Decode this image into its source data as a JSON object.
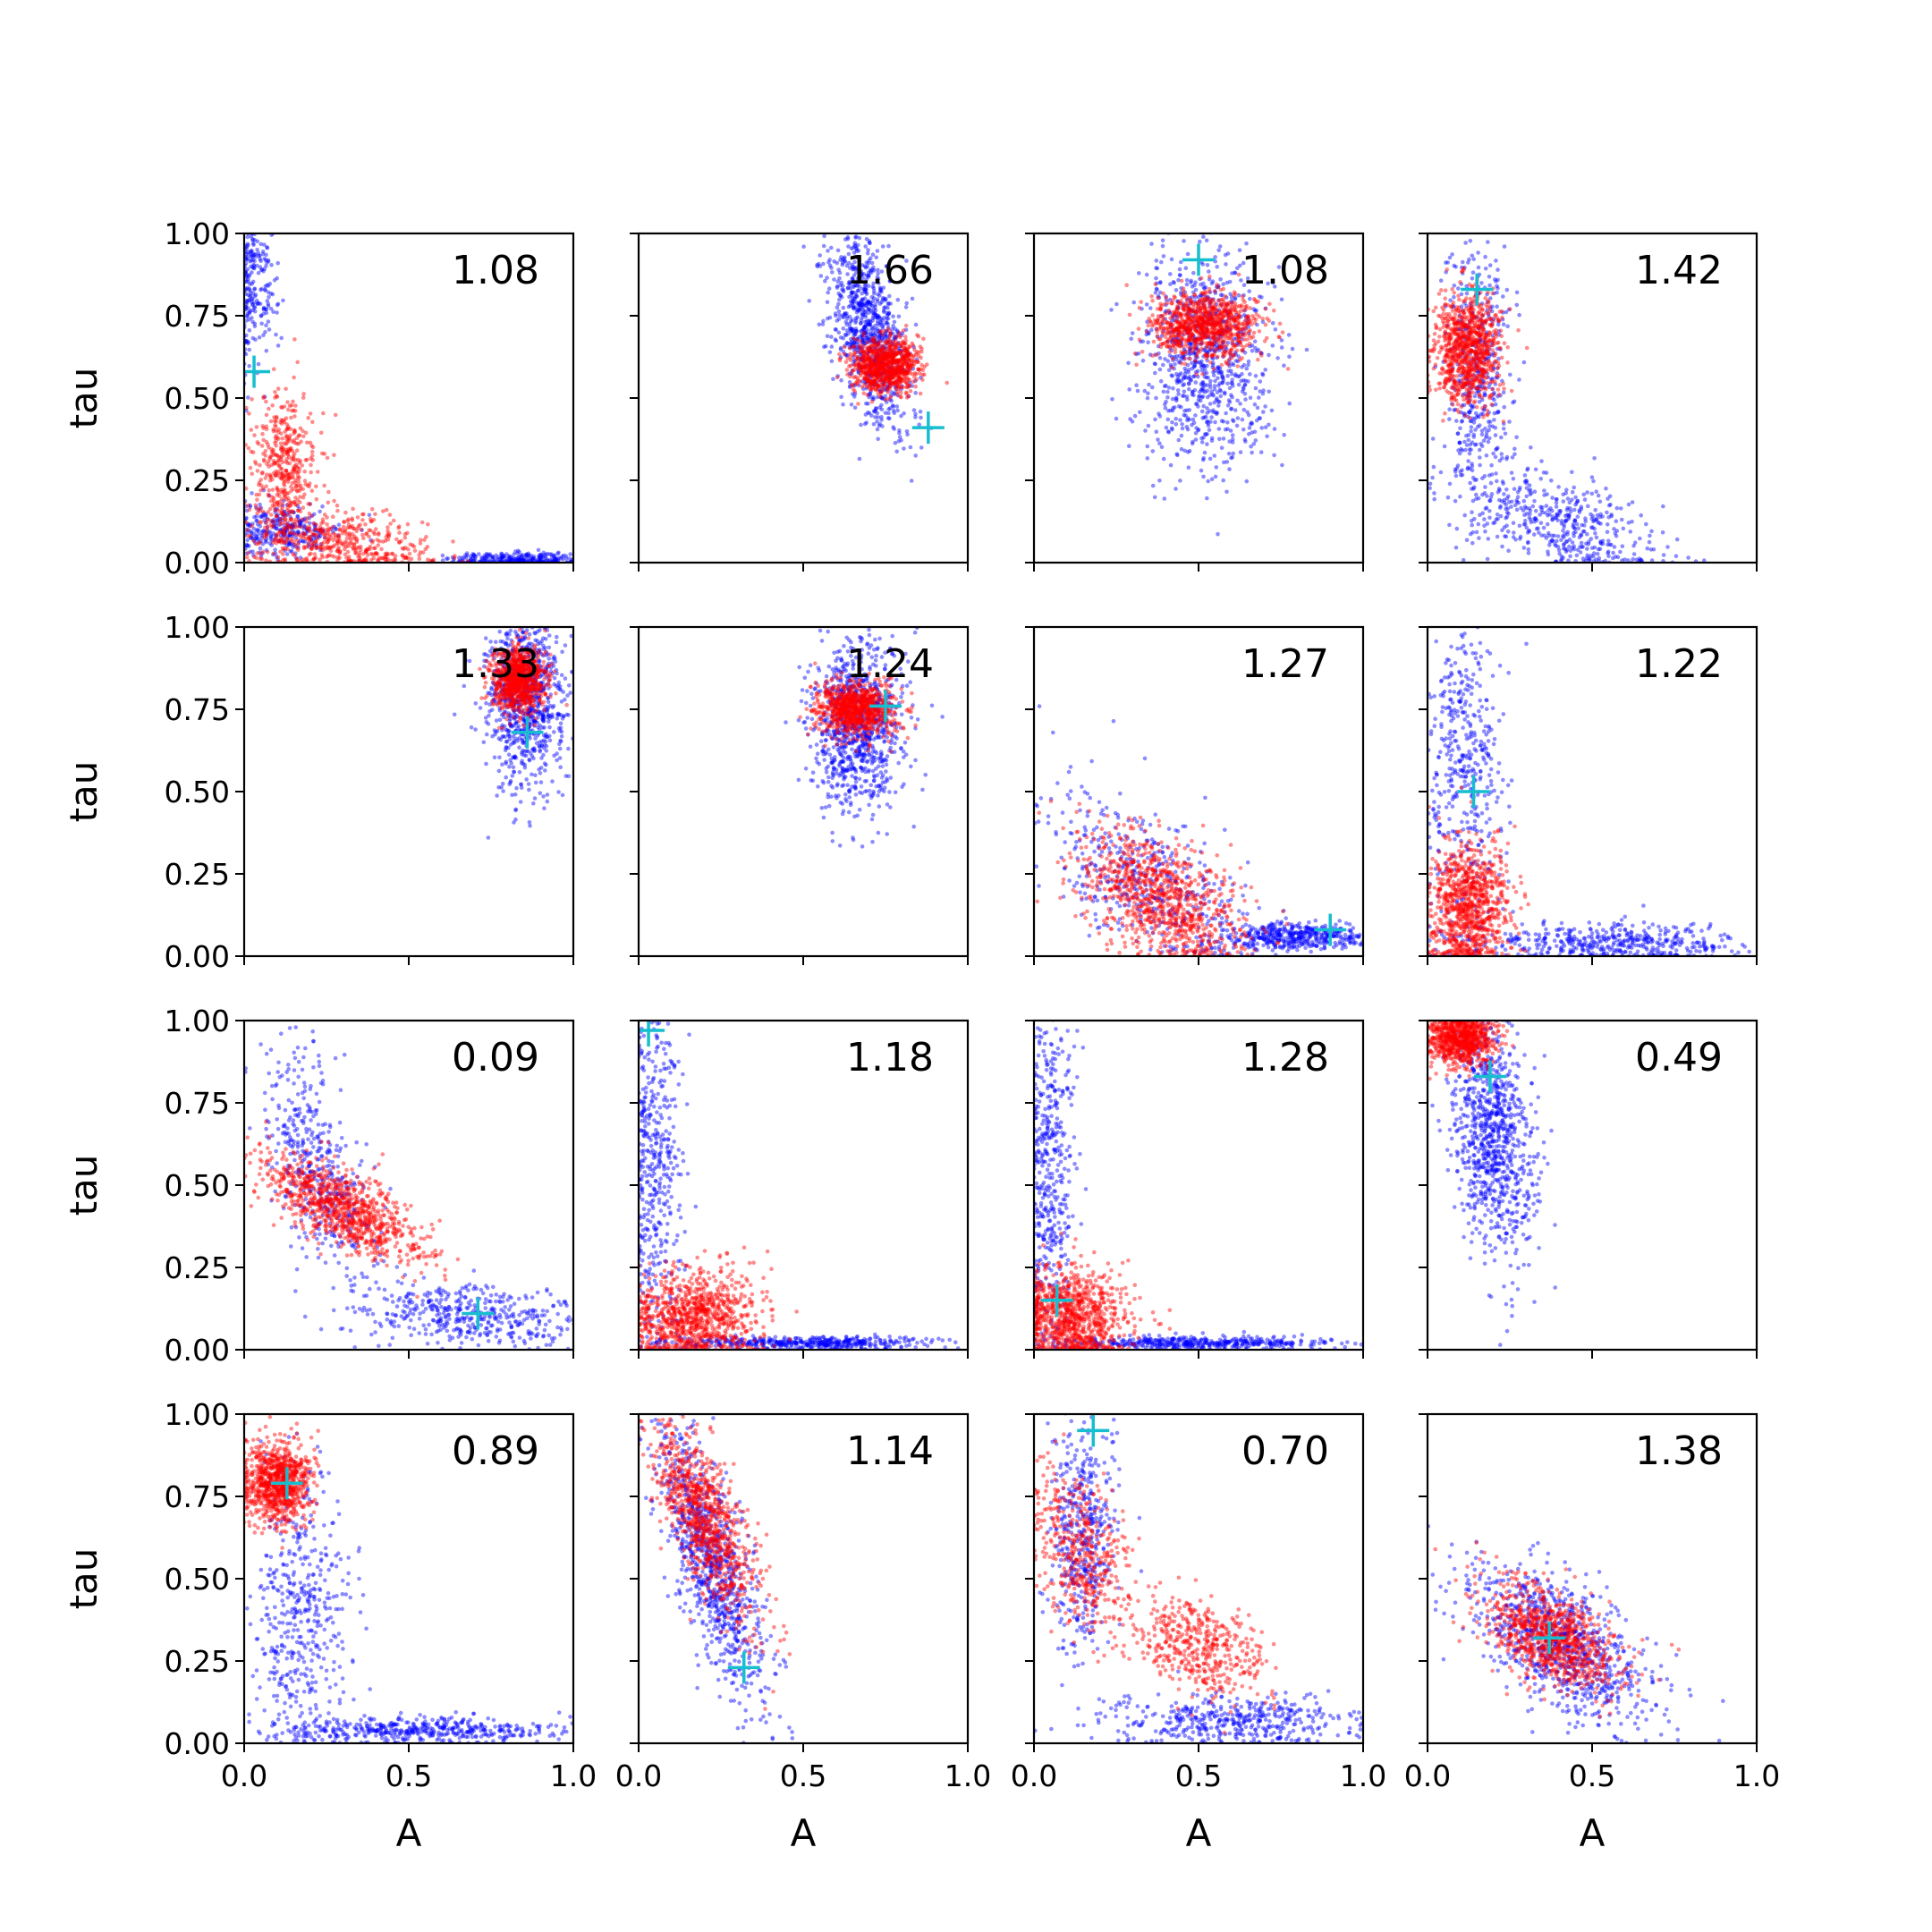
{
  "figure": {
    "rows": 4,
    "cols": 4,
    "x_label": "A",
    "y_label": "tau",
    "x_ticks": [
      "0.0",
      "0.5",
      "1.0"
    ],
    "y_ticks": [
      "0.00",
      "0.25",
      "0.50",
      "0.75",
      "1.00"
    ],
    "series_colors": {
      "blue": "#0000ff",
      "red": "#ff0000",
      "marker": "#17becf"
    }
  },
  "chart_data": {
    "type": "scatter",
    "xlim": [
      0,
      1
    ],
    "ylim": [
      0,
      1
    ],
    "xlabel": "A",
    "ylabel": "tau",
    "grid": false,
    "panels": [
      {
        "annotation": "1.08",
        "marker": [
          0.03,
          0.58
        ],
        "blue": [
          [
            0.03,
            0.9,
            0.04,
            0.16,
            0.16
          ],
          [
            0.12,
            0.1,
            0.09,
            0.04,
            0.03
          ],
          [
            0.85,
            0.01,
            0.12,
            0.01,
            0
          ]
        ],
        "red": [
          [
            0.3,
            0.06,
            0.13,
            0.05,
            -0.3
          ],
          [
            0.12,
            0.28,
            0.05,
            0.12,
            0
          ]
        ]
      },
      {
        "annotation": "1.66",
        "marker": [
          0.88,
          0.41
        ],
        "blue": [
          [
            0.7,
            0.7,
            0.06,
            0.15,
            -0.5
          ]
        ],
        "red": [
          [
            0.75,
            0.6,
            0.05,
            0.04,
            0
          ]
        ]
      },
      {
        "annotation": "1.08",
        "marker": [
          0.5,
          0.92
        ],
        "blue": [
          [
            0.52,
            0.63,
            0.1,
            0.16,
            0
          ]
        ],
        "red": [
          [
            0.52,
            0.72,
            0.08,
            0.05,
            0
          ]
        ]
      },
      {
        "annotation": "1.42",
        "marker": [
          0.15,
          0.83
        ],
        "blue": [
          [
            0.15,
            0.55,
            0.05,
            0.22,
            0
          ],
          [
            0.4,
            0.12,
            0.15,
            0.08,
            -0.5
          ]
        ],
        "red": [
          [
            0.12,
            0.65,
            0.05,
            0.08,
            0
          ]
        ]
      },
      {
        "annotation": "1.33",
        "marker": [
          0.86,
          0.68
        ],
        "blue": [
          [
            0.85,
            0.78,
            0.06,
            0.13,
            0
          ]
        ],
        "red": [
          [
            0.83,
            0.84,
            0.04,
            0.05,
            0
          ]
        ]
      },
      {
        "annotation": "1.24",
        "marker": [
          0.75,
          0.76
        ],
        "blue": [
          [
            0.66,
            0.7,
            0.07,
            0.13,
            0
          ]
        ],
        "red": [
          [
            0.66,
            0.75,
            0.06,
            0.04,
            0
          ]
        ]
      },
      {
        "annotation": "1.27",
        "marker": [
          0.9,
          0.08
        ],
        "blue": [
          [
            0.35,
            0.22,
            0.16,
            0.14,
            -0.6
          ],
          [
            0.8,
            0.06,
            0.12,
            0.02,
            0
          ]
        ],
        "red": [
          [
            0.38,
            0.18,
            0.12,
            0.1,
            -0.5
          ]
        ]
      },
      {
        "annotation": "1.22",
        "marker": [
          0.14,
          0.5
        ],
        "blue": [
          [
            0.11,
            0.55,
            0.06,
            0.24,
            0
          ],
          [
            0.55,
            0.04,
            0.2,
            0.03,
            0
          ]
        ],
        "red": [
          [
            0.12,
            0.15,
            0.06,
            0.1,
            0
          ]
        ]
      },
      {
        "annotation": "0.09",
        "marker": [
          0.71,
          0.11
        ],
        "blue": [
          [
            0.22,
            0.55,
            0.08,
            0.18,
            -0.6
          ],
          [
            0.7,
            0.1,
            0.18,
            0.05,
            -0.3
          ]
        ],
        "red": [
          [
            0.3,
            0.43,
            0.12,
            0.08,
            -0.7
          ]
        ]
      },
      {
        "annotation": "1.18",
        "marker": [
          0.03,
          0.97
        ],
        "blue": [
          [
            0.05,
            0.55,
            0.04,
            0.28,
            0
          ],
          [
            0.5,
            0.02,
            0.2,
            0.01,
            0
          ]
        ],
        "red": [
          [
            0.17,
            0.1,
            0.1,
            0.07,
            0
          ]
        ]
      },
      {
        "annotation": "1.28",
        "marker": [
          0.07,
          0.15
        ],
        "blue": [
          [
            0.05,
            0.55,
            0.04,
            0.28,
            0
          ],
          [
            0.5,
            0.02,
            0.2,
            0.01,
            0
          ]
        ],
        "red": [
          [
            0.12,
            0.1,
            0.08,
            0.07,
            0
          ]
        ]
      },
      {
        "annotation": "0.49",
        "marker": [
          0.19,
          0.83
        ],
        "blue": [
          [
            0.2,
            0.65,
            0.06,
            0.18,
            -0.3
          ]
        ],
        "red": [
          [
            0.1,
            0.95,
            0.05,
            0.04,
            0
          ]
        ]
      },
      {
        "annotation": "0.89",
        "marker": [
          0.13,
          0.79
        ],
        "blue": [
          [
            0.17,
            0.4,
            0.07,
            0.22,
            0
          ],
          [
            0.55,
            0.04,
            0.22,
            0.02,
            0
          ]
        ],
        "red": [
          [
            0.1,
            0.79,
            0.05,
            0.06,
            0
          ]
        ]
      },
      {
        "annotation": "1.14",
        "marker": [
          0.32,
          0.23
        ],
        "blue": [
          [
            0.22,
            0.55,
            0.08,
            0.2,
            -0.7
          ]
        ],
        "red": [
          [
            0.2,
            0.68,
            0.08,
            0.15,
            -0.7
          ]
        ]
      },
      {
        "annotation": "0.70",
        "marker": [
          0.18,
          0.95
        ],
        "blue": [
          [
            0.15,
            0.65,
            0.05,
            0.18,
            0
          ],
          [
            0.6,
            0.07,
            0.2,
            0.04,
            0
          ]
        ],
        "red": [
          [
            0.15,
            0.58,
            0.08,
            0.13,
            -0.4
          ],
          [
            0.5,
            0.3,
            0.1,
            0.08,
            -0.4
          ]
        ]
      },
      {
        "annotation": "1.38",
        "marker": [
          0.37,
          0.32
        ],
        "blue": [
          [
            0.4,
            0.3,
            0.14,
            0.12,
            -0.6
          ]
        ],
        "red": [
          [
            0.38,
            0.32,
            0.1,
            0.08,
            -0.5
          ]
        ]
      }
    ]
  }
}
